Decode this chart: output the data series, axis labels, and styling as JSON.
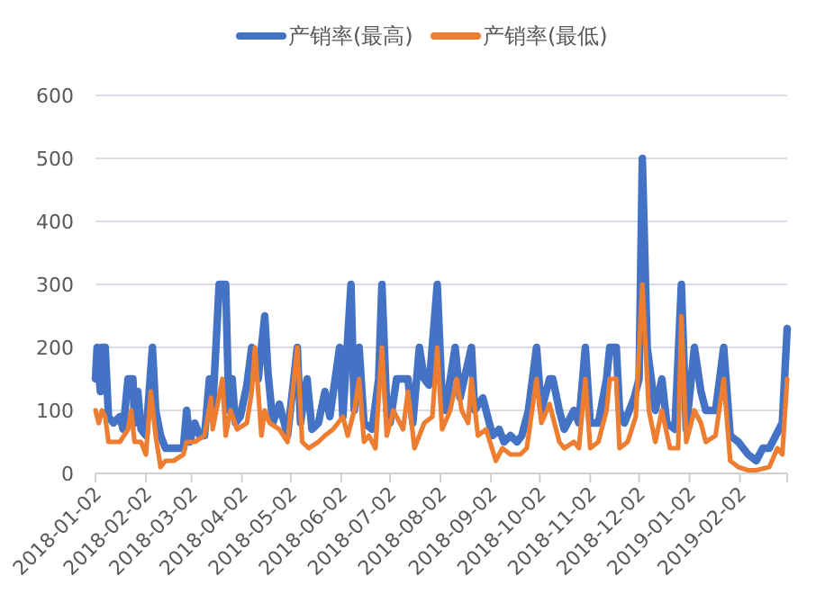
{
  "chart_data": {
    "type": "line",
    "xlim": [
      "2018-01-02",
      "2019-03-03"
    ],
    "ylim": [
      0,
      600
    ],
    "xticks": [
      "2018-01-02",
      "2018-02-02",
      "2018-03-02",
      "2018-04-02",
      "2018-05-02",
      "2018-06-02",
      "2018-07-02",
      "2018-08-02",
      "2018-09-02",
      "2018-10-02",
      "2018-11-02",
      "2018-12-02",
      "2019-01-02",
      "2019-02-02"
    ],
    "yticks": [
      0,
      100,
      200,
      300,
      400,
      500,
      600
    ],
    "grid": "y",
    "legend": "top",
    "series": [
      {
        "name": "产销率(最高)",
        "color": "#4472c4",
        "x": [
          "2018-01-02",
          "2018-01-03",
          "2018-01-05",
          "2018-01-06",
          "2018-01-08",
          "2018-01-10",
          "2018-01-13",
          "2018-01-17",
          "2018-01-19",
          "2018-01-22",
          "2018-01-25",
          "2018-01-26",
          "2018-01-28",
          "2018-01-30",
          "2018-02-02",
          "2018-02-04",
          "2018-02-06",
          "2018-02-08",
          "2018-02-11",
          "2018-02-14",
          "2018-02-19",
          "2018-02-25",
          "2018-02-27",
          "2018-03-01",
          "2018-03-04",
          "2018-03-07",
          "2018-03-10",
          "2018-03-13",
          "2018-03-15",
          "2018-03-17",
          "2018-03-19",
          "2018-03-23",
          "2018-03-25",
          "2018-03-27",
          "2018-03-29",
          "2018-04-01",
          "2018-04-05",
          "2018-04-08",
          "2018-04-12",
          "2018-04-16",
          "2018-04-18",
          "2018-04-21",
          "2018-04-25",
          "2018-04-27",
          "2018-04-30",
          "2018-05-06",
          "2018-05-08",
          "2018-05-12",
          "2018-05-15",
          "2018-05-19",
          "2018-05-23",
          "2018-05-26",
          "2018-06-01",
          "2018-06-03",
          "2018-06-08",
          "2018-06-10",
          "2018-06-13",
          "2018-06-16",
          "2018-06-21",
          "2018-06-25",
          "2018-06-27",
          "2018-06-30",
          "2018-07-02",
          "2018-07-06",
          "2018-07-10",
          "2018-07-13",
          "2018-07-16",
          "2018-07-20",
          "2018-07-23",
          "2018-07-26",
          "2018-07-31",
          "2018-08-03",
          "2018-08-05",
          "2018-08-11",
          "2018-08-14",
          "2018-08-21",
          "2018-08-23",
          "2018-08-28",
          "2018-09-03",
          "2018-09-07",
          "2018-09-10",
          "2018-09-14",
          "2018-09-18",
          "2018-09-21",
          "2018-09-25",
          "2018-09-30",
          "2018-10-03",
          "2018-10-08",
          "2018-10-10",
          "2018-10-14",
          "2018-10-17",
          "2018-10-23",
          "2018-10-26",
          "2018-10-30",
          "2018-11-02",
          "2018-11-07",
          "2018-11-12",
          "2018-11-14",
          "2018-11-18",
          "2018-11-20",
          "2018-11-23",
          "2018-11-29",
          "2018-12-02",
          "2018-12-04",
          "2018-12-07",
          "2018-12-12",
          "2018-12-16",
          "2018-12-19",
          "2018-12-24",
          "2018-12-28",
          "2018-12-31",
          "2019-01-05",
          "2019-01-09",
          "2019-01-12",
          "2019-01-18",
          "2019-01-23",
          "2019-01-27",
          "2019-02-01",
          "2019-02-07",
          "2019-02-12",
          "2019-02-16",
          "2019-02-20",
          "2019-02-24",
          "2019-02-28",
          "2019-03-03"
        ],
        "values": [
          150,
          200,
          130,
          200,
          200,
          90,
          80,
          90,
          70,
          150,
          150,
          80,
          130,
          70,
          60,
          130,
          200,
          100,
          60,
          40,
          40,
          40,
          100,
          50,
          80,
          60,
          60,
          150,
          100,
          200,
          300,
          300,
          100,
          150,
          80,
          90,
          140,
          200,
          150,
          250,
          160,
          80,
          110,
          90,
          60,
          200,
          80,
          150,
          70,
          80,
          130,
          90,
          200,
          90,
          300,
          100,
          200,
          80,
          70,
          150,
          300,
          100,
          80,
          150,
          150,
          150,
          80,
          200,
          150,
          140,
          300,
          120,
          100,
          200,
          120,
          200,
          100,
          120,
          60,
          70,
          50,
          60,
          50,
          60,
          100,
          200,
          100,
          150,
          150,
          100,
          70,
          100,
          80,
          200,
          80,
          80,
          150,
          200,
          200,
          100,
          80,
          120,
          150,
          500,
          200,
          100,
          150,
          80,
          70,
          300,
          70,
          200,
          130,
          100,
          100,
          200,
          60,
          50,
          30,
          20,
          40,
          40,
          60,
          80,
          230
        ]
      },
      {
        "name": "产销率(最低)",
        "color": "#ed7d31",
        "x": [
          "2018-01-02",
          "2018-01-04",
          "2018-01-06",
          "2018-01-08",
          "2018-01-10",
          "2018-01-17",
          "2018-01-22",
          "2018-01-24",
          "2018-01-26",
          "2018-01-30",
          "2018-02-02",
          "2018-02-05",
          "2018-02-08",
          "2018-02-11",
          "2018-02-14",
          "2018-02-19",
          "2018-02-25",
          "2018-02-27",
          "2018-03-04",
          "2018-03-10",
          "2018-03-14",
          "2018-03-15",
          "2018-03-18",
          "2018-03-21",
          "2018-03-23",
          "2018-03-26",
          "2018-03-30",
          "2018-04-05",
          "2018-04-08",
          "2018-04-10",
          "2018-04-12",
          "2018-04-14",
          "2018-04-16",
          "2018-04-19",
          "2018-04-25",
          "2018-04-30",
          "2018-05-06",
          "2018-05-09",
          "2018-05-13",
          "2018-05-19",
          "2018-05-23",
          "2018-05-28",
          "2018-06-03",
          "2018-06-06",
          "2018-06-10",
          "2018-06-13",
          "2018-06-16",
          "2018-06-19",
          "2018-06-23",
          "2018-06-27",
          "2018-06-30",
          "2018-07-04",
          "2018-07-10",
          "2018-07-13",
          "2018-07-17",
          "2018-07-23",
          "2018-07-28",
          "2018-07-31",
          "2018-08-03",
          "2018-08-08",
          "2018-08-12",
          "2018-08-15",
          "2018-08-19",
          "2018-08-21",
          "2018-08-25",
          "2018-08-30",
          "2018-09-05",
          "2018-09-09",
          "2018-09-14",
          "2018-09-20",
          "2018-09-24",
          "2018-09-30",
          "2018-10-03",
          "2018-10-08",
          "2018-10-14",
          "2018-10-17",
          "2018-10-23",
          "2018-10-26",
          "2018-10-30",
          "2018-11-02",
          "2018-11-07",
          "2018-11-12",
          "2018-11-14",
          "2018-11-18",
          "2018-11-20",
          "2018-11-25",
          "2018-11-30",
          "2018-12-04",
          "2018-12-08",
          "2018-12-12",
          "2018-12-16",
          "2018-12-21",
          "2018-12-26",
          "2018-12-28",
          "2018-12-31",
          "2019-01-05",
          "2019-01-09",
          "2019-01-12",
          "2019-01-18",
          "2019-01-23",
          "2019-01-27",
          "2019-02-01",
          "2019-02-07",
          "2019-02-12",
          "2019-02-20",
          "2019-02-25",
          "2019-02-28",
          "2019-03-03"
        ],
        "values": [
          100,
          80,
          100,
          90,
          50,
          50,
          70,
          100,
          50,
          50,
          30,
          130,
          60,
          10,
          20,
          20,
          30,
          50,
          50,
          60,
          120,
          70,
          110,
          150,
          60,
          100,
          70,
          80,
          130,
          200,
          130,
          60,
          100,
          80,
          70,
          50,
          200,
          50,
          40,
          50,
          60,
          70,
          90,
          60,
          100,
          150,
          50,
          60,
          40,
          200,
          60,
          100,
          70,
          130,
          40,
          80,
          90,
          200,
          70,
          100,
          150,
          100,
          80,
          150,
          60,
          70,
          20,
          40,
          30,
          30,
          40,
          150,
          80,
          110,
          50,
          40,
          50,
          40,
          150,
          40,
          50,
          100,
          150,
          150,
          40,
          50,
          90,
          300,
          100,
          50,
          100,
          40,
          40,
          250,
          50,
          100,
          80,
          50,
          60,
          150,
          20,
          10,
          5,
          5,
          10,
          40,
          30,
          150
        ]
      }
    ]
  }
}
